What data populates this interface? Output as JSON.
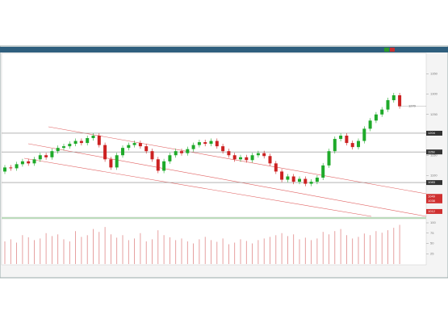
{
  "chart_data": {
    "type": "candlestick",
    "open": [
      1110,
      1120,
      1118,
      1128,
      1135,
      1130,
      1140,
      1150,
      1145,
      1160,
      1168,
      1172,
      1178,
      1185,
      1180,
      1192,
      1198,
      1175,
      1140,
      1120,
      1150,
      1168,
      1175,
      1180,
      1172,
      1160,
      1140,
      1112,
      1135,
      1150,
      1160,
      1155,
      1165,
      1175,
      1182,
      1178,
      1185,
      1172,
      1160,
      1150,
      1140,
      1145,
      1138,
      1150,
      1155,
      1148,
      1130,
      1110,
      1090,
      1098,
      1085,
      1092,
      1080,
      1085,
      1095,
      1125,
      1160,
      1190,
      1198,
      1180,
      1170,
      1185,
      1215,
      1235,
      1250,
      1262,
      1285,
      1297
    ],
    "high": [
      1126,
      1126,
      1134,
      1141,
      1141,
      1146,
      1156,
      1156,
      1166,
      1174,
      1178,
      1184,
      1191,
      1191,
      1198,
      1204,
      1204,
      1181,
      1146,
      1156,
      1174,
      1181,
      1186,
      1186,
      1178,
      1166,
      1146,
      1141,
      1156,
      1166,
      1166,
      1171,
      1181,
      1188,
      1188,
      1191,
      1191,
      1178,
      1166,
      1156,
      1151,
      1151,
      1156,
      1161,
      1161,
      1154,
      1136,
      1116,
      1104,
      1104,
      1098,
      1098,
      1091,
      1101,
      1131,
      1166,
      1196,
      1204,
      1204,
      1186,
      1191,
      1221,
      1241,
      1256,
      1268,
      1291,
      1303,
      1303
    ],
    "low": [
      1104,
      1112,
      1112,
      1122,
      1124,
      1124,
      1134,
      1139,
      1139,
      1154,
      1162,
      1166,
      1172,
      1174,
      1174,
      1186,
      1169,
      1134,
      1114,
      1114,
      1144,
      1162,
      1169,
      1166,
      1154,
      1134,
      1106,
      1106,
      1129,
      1144,
      1149,
      1149,
      1159,
      1169,
      1172,
      1172,
      1166,
      1154,
      1144,
      1134,
      1134,
      1132,
      1132,
      1144,
      1142,
      1124,
      1104,
      1084,
      1084,
      1079,
      1079,
      1074,
      1074,
      1079,
      1089,
      1119,
      1154,
      1184,
      1174,
      1164,
      1164,
      1179,
      1209,
      1229,
      1244,
      1256,
      1279,
      1264
    ],
    "close": [
      1120,
      1118,
      1128,
      1135,
      1130,
      1140,
      1150,
      1145,
      1160,
      1168,
      1172,
      1178,
      1185,
      1180,
      1192,
      1198,
      1175,
      1140,
      1120,
      1150,
      1168,
      1175,
      1180,
      1172,
      1160,
      1140,
      1112,
      1135,
      1150,
      1160,
      1155,
      1165,
      1175,
      1182,
      1178,
      1185,
      1172,
      1160,
      1150,
      1140,
      1145,
      1138,
      1150,
      1155,
      1148,
      1130,
      1110,
      1090,
      1098,
      1085,
      1092,
      1080,
      1085,
      1095,
      1125,
      1160,
      1190,
      1198,
      1180,
      1170,
      1185,
      1215,
      1235,
      1250,
      1262,
      1285,
      1297,
      1270
    ],
    "volume": [
      55,
      60,
      52,
      70,
      65,
      58,
      62,
      75,
      68,
      72,
      60,
      55,
      80,
      66,
      70,
      85,
      78,
      90,
      72,
      64,
      70,
      58,
      62,
      75,
      55,
      60,
      82,
      70,
      65,
      58,
      62,
      55,
      50,
      60,
      66,
      58,
      54,
      62,
      48,
      52,
      60,
      56,
      50,
      58,
      62,
      66,
      70,
      75,
      68,
      72,
      60,
      64,
      58,
      62,
      78,
      72,
      80,
      85,
      70,
      62,
      66,
      74,
      70,
      80,
      76,
      82,
      88,
      95
    ],
    "up_color": "#1faa2a",
    "down_color": "#cc2222",
    "volume_color": "#e08888",
    "ylim": [
      1000,
      1400
    ],
    "yticks": [
      1100,
      1150,
      1200,
      1250,
      1300,
      1350
    ],
    "volume_ylim": [
      0,
      100
    ],
    "volume_yticks": [
      25,
      50,
      75,
      100
    ],
    "levels": [
      1204,
      1158,
      1083
    ],
    "alerts": [
      1049,
      1038,
      1012
    ]
  }
}
